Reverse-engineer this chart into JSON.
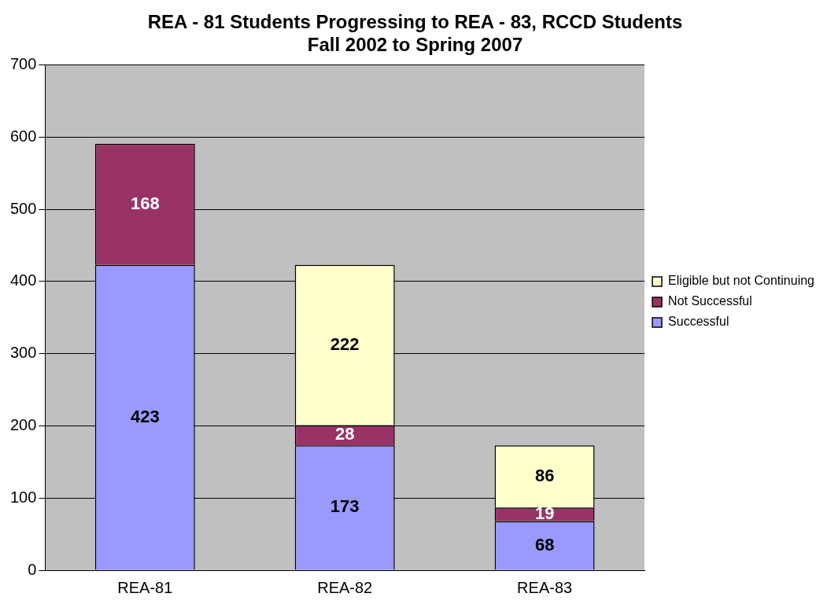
{
  "chart_data": {
    "type": "bar",
    "title": "REA - 81 Students Progressing to REA - 83, RCCD Students\nFall 2002 to Spring 2007",
    "categories": [
      "REA-81",
      "REA-82",
      "REA-83"
    ],
    "series": [
      {
        "name": "Successful",
        "color": "#9999ff",
        "values": [
          423,
          173,
          68
        ]
      },
      {
        "name": "Not Successful",
        "color": "#993366",
        "values": [
          168,
          28,
          19
        ]
      },
      {
        "name": "Eligible but not Continuing",
        "color": "#ffffcc",
        "values": [
          null,
          222,
          86
        ]
      }
    ],
    "stacked": true,
    "ylim": [
      0,
      700
    ],
    "yticks": [
      0,
      100,
      200,
      300,
      400,
      500,
      600,
      700
    ],
    "grid": "y",
    "legend": "right",
    "data_labels": true
  }
}
